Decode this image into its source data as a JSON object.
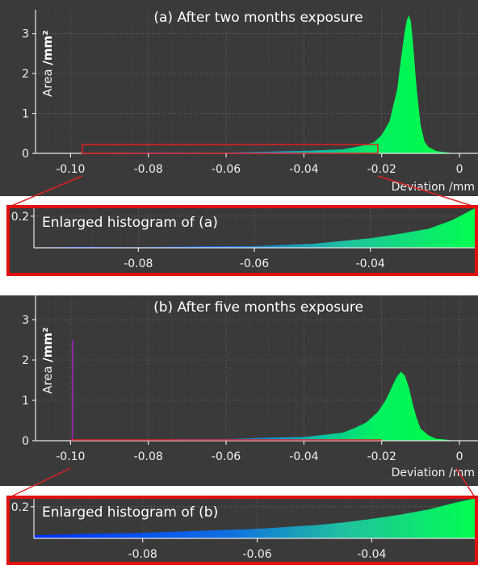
{
  "chart_data": [
    {
      "type": "area",
      "title": "(a) After two months exposure",
      "ylabel": "Area",
      "ylabel_unit": "/mm²",
      "xlabel": "Deviation /mm",
      "xlim": [
        -0.109,
        0.006
      ],
      "ylim": [
        0,
        3.6
      ],
      "x_ticks": [
        "-0.10",
        "-0.08",
        "-0.06",
        "-0.04",
        "-0.02",
        "0"
      ],
      "x_tick_values": [
        -0.1,
        -0.08,
        -0.06,
        -0.04,
        -0.02,
        0.0
      ],
      "y_ticks": [
        "0",
        "1",
        "2",
        "3"
      ],
      "y_tick_values": [
        0,
        1,
        2,
        3
      ],
      "series": [
        {
          "x": [
            -0.1,
            -0.08,
            -0.06,
            -0.04,
            -0.03,
            -0.025,
            -0.022,
            -0.02,
            -0.018,
            -0.016,
            -0.015,
            -0.014,
            -0.0135,
            -0.013,
            -0.0125,
            -0.012,
            -0.011,
            -0.01,
            -0.009,
            -0.008,
            -0.006,
            -0.004,
            -0.002,
            0.0
          ],
          "y": [
            0.0,
            0.01,
            0.02,
            0.05,
            0.1,
            0.18,
            0.28,
            0.45,
            0.8,
            1.6,
            2.4,
            3.1,
            3.35,
            3.45,
            3.3,
            2.8,
            1.6,
            0.7,
            0.3,
            0.15,
            0.06,
            0.02,
            0.01,
            0.0
          ]
        }
      ],
      "zoom_box": {
        "x": [
          -0.097,
          -0.021
        ],
        "y": [
          0,
          0.22
        ]
      },
      "colors": {
        "low": "#0028ff",
        "mid": "#00c8c8",
        "high": "#00ff3c"
      }
    },
    {
      "type": "area",
      "title": "Enlarged histogram of (a)",
      "xlim": [
        -0.098,
        -0.022
      ],
      "ylim": [
        0,
        0.25
      ],
      "x_ticks": [
        "-0.08",
        "-0.06",
        "-0.04"
      ],
      "x_tick_values": [
        -0.08,
        -0.06,
        -0.04
      ],
      "y_ticks": [
        "0.2"
      ],
      "y_tick_values": [
        0.2
      ],
      "series": [
        {
          "x": [
            -0.098,
            -0.09,
            -0.08,
            -0.07,
            -0.06,
            -0.055,
            -0.05,
            -0.045,
            -0.04,
            -0.035,
            -0.03,
            -0.026,
            -0.022
          ],
          "y": [
            0.002,
            0.003,
            0.004,
            0.006,
            0.01,
            0.015,
            0.025,
            0.04,
            0.06,
            0.085,
            0.12,
            0.17,
            0.25
          ]
        }
      ]
    },
    {
      "type": "area",
      "title": "(b) After five months exposure",
      "ylabel": "Area",
      "ylabel_unit": "/mm²",
      "xlabel": "Deviation /mm",
      "xlim": [
        -0.109,
        0.006
      ],
      "ylim": [
        0,
        3.6
      ],
      "x_ticks": [
        "-0.10",
        "-0.08",
        "-0.06",
        "-0.04",
        "-0.02",
        "0"
      ],
      "x_tick_values": [
        -0.1,
        -0.08,
        -0.06,
        -0.04,
        -0.02,
        0.0
      ],
      "y_ticks": [
        "0",
        "1",
        "2",
        "3"
      ],
      "y_tick_values": [
        0,
        1,
        2,
        3
      ],
      "series": [
        {
          "x": [
            -0.1,
            -0.09,
            -0.08,
            -0.07,
            -0.06,
            -0.05,
            -0.04,
            -0.035,
            -0.03,
            -0.027,
            -0.024,
            -0.021,
            -0.019,
            -0.017,
            -0.016,
            -0.015,
            -0.014,
            -0.013,
            -0.012,
            -0.011,
            -0.01,
            -0.008,
            -0.006,
            -0.004,
            -0.002,
            0.0
          ],
          "y": [
            0.01,
            0.01,
            0.02,
            0.03,
            0.04,
            0.06,
            0.09,
            0.13,
            0.2,
            0.3,
            0.45,
            0.7,
            1.0,
            1.4,
            1.6,
            1.7,
            1.6,
            1.3,
            0.9,
            0.55,
            0.3,
            0.12,
            0.05,
            0.02,
            0.01,
            0.0
          ]
        }
      ],
      "spike": {
        "x": -0.0995,
        "y": 2.5,
        "color": "#a020c0"
      },
      "zoom_box": {
        "x": [
          -0.1,
          -0.02
        ],
        "y": [
          0,
          0.02
        ]
      },
      "colors": {
        "low": "#0028ff",
        "mid": "#00c8c8",
        "high": "#00ff3c"
      }
    },
    {
      "type": "area",
      "title": "Enlarged histogram of (b)",
      "xlim": [
        -0.099,
        -0.022
      ],
      "ylim": [
        0,
        0.25
      ],
      "x_ticks": [
        "-0.08",
        "-0.06",
        "-0.04"
      ],
      "x_tick_values": [
        -0.08,
        -0.06,
        -0.04
      ],
      "y_ticks": [
        "0.2"
      ],
      "y_tick_values": [
        0.2
      ],
      "series": [
        {
          "x": [
            -0.099,
            -0.09,
            -0.08,
            -0.07,
            -0.06,
            -0.05,
            -0.045,
            -0.04,
            -0.035,
            -0.03,
            -0.026,
            -0.022
          ],
          "y": [
            0.02,
            0.025,
            0.035,
            0.045,
            0.06,
            0.08,
            0.1,
            0.12,
            0.15,
            0.18,
            0.22,
            0.25
          ]
        }
      ]
    }
  ]
}
